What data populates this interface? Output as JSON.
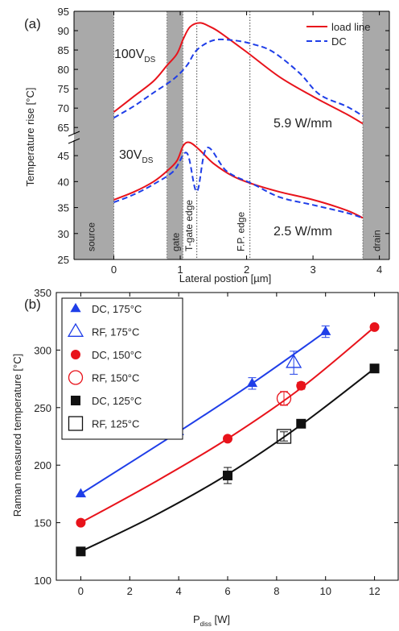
{
  "chart_data": [
    {
      "panel_label": "(a)",
      "type": "line",
      "xlabel": "Lateral postion [µm]",
      "ylabel": "Temperature rise [°C]",
      "xlim": [
        -0.6,
        4.15
      ],
      "x_ticks": [
        "0",
        "1",
        "2",
        "3",
        "4"
      ],
      "y_axis_break": {
        "lower_range": [
          25,
          47.5
        ],
        "upper_range": [
          64,
          95
        ]
      },
      "y_ticks_lower": [
        "25",
        "30",
        "35",
        "40",
        "45"
      ],
      "y_ticks_upper": [
        "65",
        "70",
        "75",
        "80",
        "85",
        "90",
        "95"
      ],
      "legend": {
        "position": "top-right",
        "entries": [
          "load line",
          "DC"
        ]
      },
      "annotations": [
        {
          "text": "100V",
          "sub": "DS",
          "near": "upper curves"
        },
        {
          "text": "30V",
          "sub": "DS",
          "near": "lower curves"
        },
        {
          "text": "5.9 W/mm"
        },
        {
          "text": "2.5 W/mm"
        }
      ],
      "regions": [
        {
          "label": "source",
          "shaded": true,
          "x0": -0.6,
          "x1": 0
        },
        {
          "label": "gate",
          "shaded": true,
          "x0": 0.8,
          "x1": 1.04
        },
        {
          "label": "T-gate edge",
          "shaded": false,
          "x0": 1.25,
          "x1": 1.25
        },
        {
          "label": "F.P. edge",
          "shaded": false,
          "x0": 2.05,
          "x1": 2.05
        },
        {
          "label": "drain",
          "shaded": true,
          "x0": 3.75,
          "x1": 4.15
        }
      ],
      "series": [
        {
          "name": "load line",
          "group": "100V",
          "style": "solid",
          "color": "#e8131b",
          "x": [
            0,
            0.3,
            0.6,
            0.8,
            0.95,
            1.05,
            1.15,
            1.3,
            1.45,
            1.6,
            2.0,
            2.5,
            3.0,
            3.5,
            3.75
          ],
          "y": [
            69,
            73,
            77,
            81,
            84,
            88,
            91,
            92,
            91,
            89.5,
            84.5,
            78,
            73,
            68.5,
            66
          ]
        },
        {
          "name": "DC",
          "group": "100V",
          "style": "dashed",
          "color": "#1f3ee8",
          "x": [
            0,
            0.3,
            0.6,
            0.9,
            1.1,
            1.25,
            1.5,
            1.8,
            2.1,
            2.4,
            2.8,
            3.1,
            3.5,
            3.75
          ],
          "y": [
            67.5,
            70.5,
            74,
            77.5,
            81,
            85,
            87.5,
            87.5,
            86.5,
            84.5,
            79,
            73.5,
            70.5,
            68
          ]
        },
        {
          "name": "load line",
          "group": "30V",
          "style": "solid",
          "color": "#e8131b",
          "x": [
            0,
            0.3,
            0.6,
            0.8,
            0.95,
            1.05,
            1.15,
            1.3,
            1.5,
            1.8,
            2.1,
            2.5,
            3.0,
            3.5,
            3.75
          ],
          "y": [
            36.5,
            38,
            40,
            42,
            44,
            47,
            47.5,
            46,
            43.5,
            41,
            39.5,
            38,
            36.5,
            34.5,
            33
          ]
        },
        {
          "name": "DC",
          "group": "30V",
          "style": "dashed",
          "color": "#1f3ee8",
          "x": [
            0,
            0.3,
            0.6,
            0.9,
            1.1,
            1.25,
            1.4,
            1.7,
            2.1,
            2.5,
            3.0,
            3.5,
            3.75
          ],
          "y": [
            36,
            37.5,
            39.5,
            42,
            45.5,
            48.5,
            46.5,
            42,
            39.5,
            37,
            35.5,
            34,
            33
          ]
        }
      ]
    },
    {
      "panel_label": "(b)",
      "type": "scatter",
      "xlabel": "P",
      "xlabel_sub": "diss",
      "xlabel_unit": " [W]",
      "ylabel": "Raman measured temperature [°C]",
      "xlim": [
        -1,
        13
      ],
      "ylim": [
        100,
        350
      ],
      "x_ticks": [
        "0",
        "2",
        "4",
        "6",
        "8",
        "10",
        "12"
      ],
      "y_ticks": [
        "100",
        "150",
        "200",
        "250",
        "300",
        "350"
      ],
      "legend": {
        "position": "top-left"
      },
      "series": [
        {
          "name": "DC, 175°C",
          "marker": "filled-triangle",
          "color": "#1f3ee8",
          "x": [
            0,
            4,
            7,
            10
          ],
          "y": [
            175,
            229,
            271,
            316
          ],
          "err": [
            0,
            2,
            5,
            5
          ]
        },
        {
          "name": "RF, 175°C",
          "marker": "open-triangle",
          "color": "#1f3ee8",
          "x": [
            8.7
          ],
          "y": [
            289
          ],
          "err": [
            10
          ]
        },
        {
          "name": "DC, 150°C",
          "marker": "filled-circle",
          "color": "#e8131b",
          "x": [
            0,
            6,
            9,
            12
          ],
          "y": [
            150,
            223,
            269,
            320
          ],
          "err": [
            0,
            2,
            3,
            2
          ]
        },
        {
          "name": "RF, 150°C",
          "marker": "open-circle",
          "color": "#e8131b",
          "x": [
            8.3
          ],
          "y": [
            258
          ],
          "err": [
            6
          ]
        },
        {
          "name": "DC, 125°C",
          "marker": "filled-square",
          "color": "#111111",
          "x": [
            0,
            6,
            9,
            12
          ],
          "y": [
            125,
            191,
            236,
            284
          ],
          "err": [
            0,
            7,
            3,
            3
          ]
        },
        {
          "name": "RF, 125°C",
          "marker": "open-square",
          "color": "#111111",
          "x": [
            8.3
          ],
          "y": [
            225
          ],
          "err": [
            4
          ]
        }
      ],
      "fits": [
        {
          "color": "#1f3ee8",
          "x": [
            0,
            4,
            7,
            10
          ],
          "y": [
            175,
            229,
            271,
            316
          ]
        },
        {
          "color": "#e8131b",
          "x": [
            0,
            3,
            6,
            9,
            12
          ],
          "y": [
            150,
            185,
            223,
            267,
            320
          ]
        },
        {
          "color": "#111111",
          "x": [
            0,
            3,
            6,
            9,
            12
          ],
          "y": [
            125,
            156,
            192,
            235,
            284
          ]
        }
      ]
    }
  ]
}
